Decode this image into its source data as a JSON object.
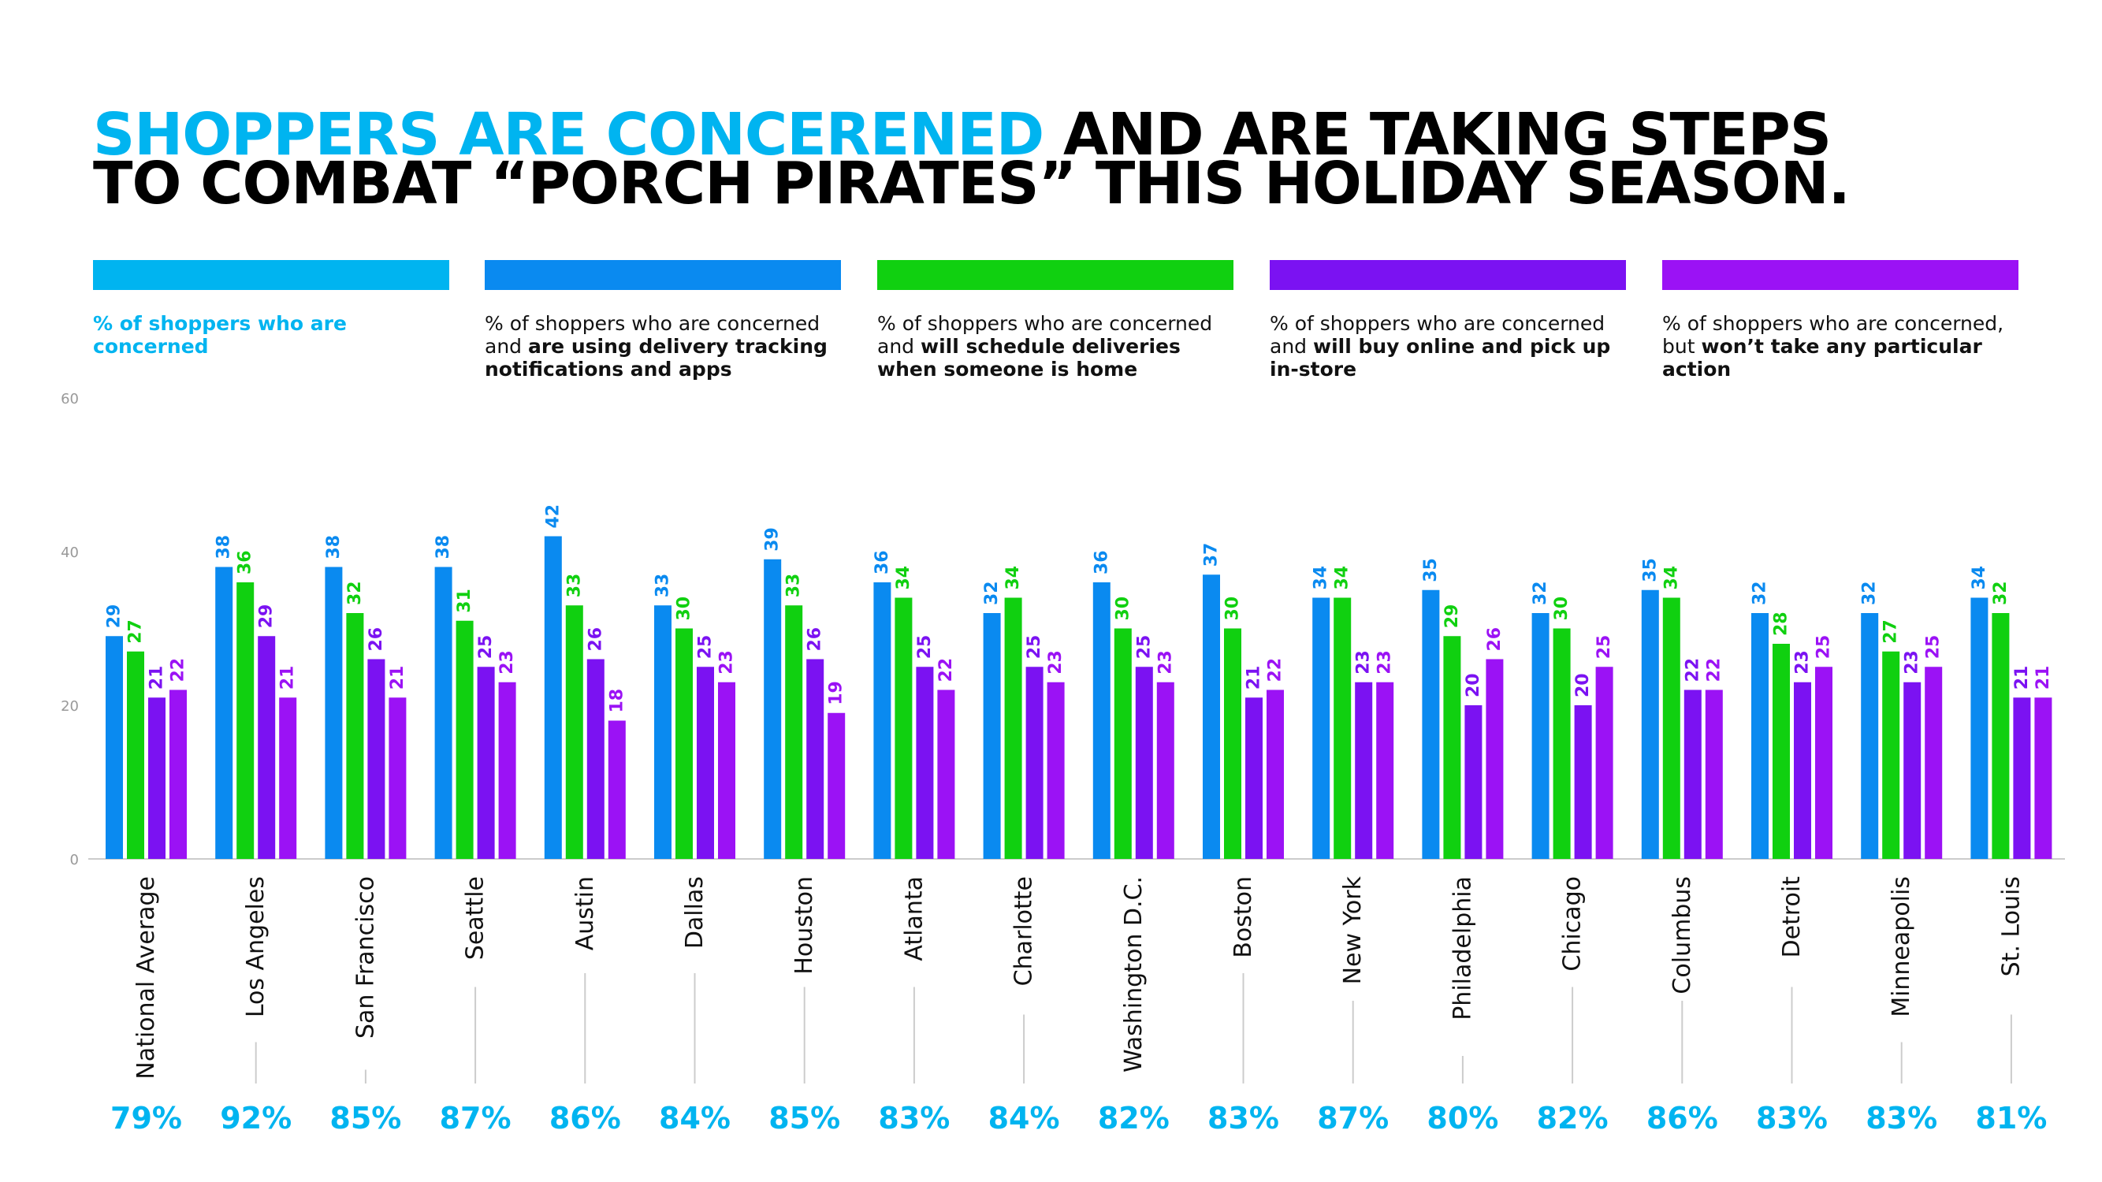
{
  "title": {
    "highlight": "SHOPPERS ARE CONCERENED",
    "rest_line1": " AND ARE TAKING STEPS",
    "line2": "TO COMBAT “PORCH PIRATES” THIS HOLIDAY SEASON."
  },
  "legend": [
    {
      "color": "#00b4f0",
      "pre": "% of shoppers who are concerned",
      "bold": "",
      "post": ""
    },
    {
      "color": "#0a8af0",
      "pre": "% of shoppers who are concerned and ",
      "bold": "are using delivery tracking notifications and apps",
      "post": ""
    },
    {
      "color": "#10d010",
      "pre": "% of shoppers who are concerned and ",
      "bold": "will schedule deliveries when someone is home",
      "post": ""
    },
    {
      "color": "#7b12f2",
      "pre": "% of shoppers who are concerned and ",
      "bold": "will buy online and pick up in-store",
      "post": ""
    },
    {
      "color": "#9b12f5",
      "pre": "% of shoppers who are concerned, but ",
      "bold": "won’t take any particular  action",
      "post": ""
    }
  ],
  "chart_data": {
    "type": "bar",
    "categories": [
      "National Average",
      "Los Angeles",
      "San Francisco",
      "Seattle",
      "Austin",
      "Dallas",
      "Houston",
      "Atlanta",
      "Charlotte",
      "Washington D.C.",
      "Boston",
      "New York",
      "Philadelphia",
      "Chicago",
      "Columbus",
      "Detroit",
      "Minneapolis",
      "St. Louis"
    ],
    "series": [
      {
        "color": "#0a8af0",
        "values": [
          29,
          38,
          38,
          38,
          42,
          33,
          39,
          36,
          32,
          36,
          37,
          34,
          35,
          32,
          35,
          32,
          32,
          34
        ]
      },
      {
        "color": "#10d010",
        "values": [
          27,
          36,
          32,
          31,
          33,
          30,
          33,
          34,
          34,
          30,
          30,
          34,
          29,
          30,
          34,
          28,
          27,
          32
        ]
      },
      {
        "color": "#7b12f2",
        "values": [
          21,
          29,
          26,
          25,
          26,
          25,
          26,
          25,
          25,
          25,
          21,
          23,
          20,
          20,
          22,
          23,
          23,
          21
        ]
      },
      {
        "color": "#9b12f5",
        "values": [
          22,
          21,
          21,
          23,
          18,
          23,
          19,
          22,
          23,
          23,
          22,
          23,
          26,
          25,
          22,
          25,
          25,
          21
        ]
      }
    ],
    "concerned_pct": [
      "79%",
      "92%",
      "85%",
      "87%",
      "86%",
      "84%",
      "85%",
      "83%",
      "84%",
      "82%",
      "83%",
      "87%",
      "80%",
      "82%",
      "86%",
      "83%",
      "83%",
      "81%"
    ],
    "ylim": [
      0,
      60
    ],
    "yticks": [
      0,
      20,
      40,
      60
    ],
    "grid": false,
    "colors": {
      "concerned": "#00b4f0",
      "tick": "#999999",
      "axis": "#cccccc",
      "connector": "#cccccc"
    }
  }
}
